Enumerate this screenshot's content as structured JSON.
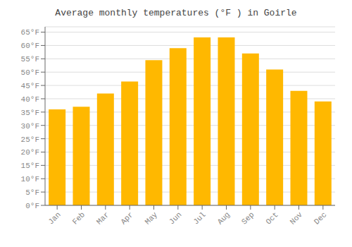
{
  "chart_data": {
    "type": "bar",
    "title": "Average monthly temperatures (°F ) in Goirle",
    "categories": [
      "Jan",
      "Feb",
      "Mar",
      "Apr",
      "May",
      "Jun",
      "Jul",
      "Aug",
      "Sep",
      "Oct",
      "Nov",
      "Dec"
    ],
    "values": [
      36,
      37,
      42,
      46.5,
      54.5,
      59,
      63,
      63,
      57,
      51,
      43,
      39
    ],
    "color": "#FFB800",
    "ylim": [
      0,
      67
    ],
    "yticks": [
      {
        "value": 0,
        "label": "0°F"
      },
      {
        "value": 5,
        "label": "5°F"
      },
      {
        "value": 10,
        "label": "10°F"
      },
      {
        "value": 15,
        "label": "15°F"
      },
      {
        "value": 20,
        "label": "20°F"
      },
      {
        "value": 25,
        "label": "25°F"
      },
      {
        "value": 30,
        "label": "30°F"
      },
      {
        "value": 35,
        "label": "35°F"
      },
      {
        "value": 40,
        "label": "40°F"
      },
      {
        "value": 45,
        "label": "45°F"
      },
      {
        "value": 50,
        "label": "50°F"
      },
      {
        "value": 55,
        "label": "55°F"
      },
      {
        "value": 60,
        "label": "60°F"
      },
      {
        "value": 65,
        "label": "65°F"
      }
    ],
    "grid": true
  }
}
